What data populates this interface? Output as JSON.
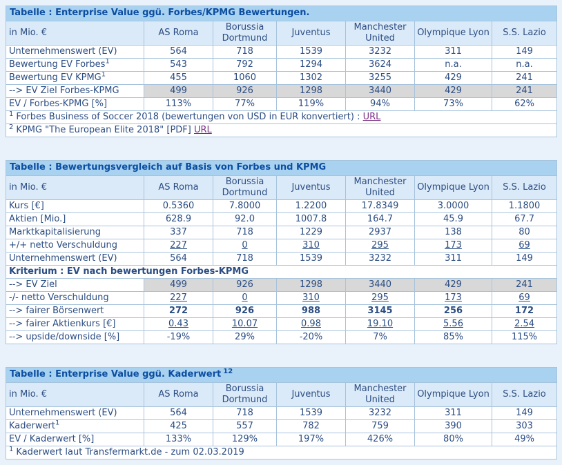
{
  "colors": {
    "page_bg": "#e9f2fb",
    "title_bg": "#a9d2f0",
    "title_text": "#0b4da1",
    "header_bg": "#dbeaf8",
    "body_text": "#2b4d83",
    "gray_bg": "#d8d8d8",
    "border": "#a6c3dc",
    "link": "#7b3086"
  },
  "clubs": [
    "AS Roma",
    "Borussia Dortmund",
    "Juventus",
    "Manchester United",
    "Olympique Lyon",
    "S.S. Lazio"
  ],
  "tables": [
    {
      "title": "Tabelle : Enterprise Value ggü. Forbes/KPMG Bewertungen.",
      "corner_label": "in Mio. €",
      "rows": [
        {
          "label": "Unternehmenswert (EV)",
          "values": [
            "564",
            "718",
            "1539",
            "3232",
            "311",
            "149"
          ]
        },
        {
          "label": "Bewertung EV Forbes",
          "label_sup": "1",
          "values": [
            "543",
            "792",
            "1294",
            "3624",
            "n.a.",
            "n.a."
          ]
        },
        {
          "label": "Bewertung EV KPMG",
          "label_sup": "1",
          "values": [
            "455",
            "1060",
            "1302",
            "3255",
            "429",
            "241"
          ]
        },
        {
          "label": "--> EV Ziel Forbes-KPMG",
          "highlight": "gray",
          "values": [
            "499",
            "926",
            "1298",
            "3440",
            "429",
            "241"
          ]
        },
        {
          "label": "EV / Forbes-KPMG [%]",
          "values": [
            "113%",
            "77%",
            "119%",
            "94%",
            "73%",
            "62%"
          ]
        }
      ],
      "footnotes": [
        {
          "sup": "1",
          "text": "Forbes Business of Soccer 2018 (bewertungen von USD in EUR konvertiert) : ",
          "link": "URL"
        },
        {
          "sup": "2",
          "text": "KPMG \"The European Elite 2018\" [PDF] ",
          "link": "URL"
        }
      ]
    },
    {
      "title": "Tabelle : Bewertungsvergleich auf Basis von Forbes und KPMG",
      "corner_label": "in Mio. €",
      "rows": [
        {
          "label": "Kurs [€]",
          "values": [
            "0.5360",
            "7.8000",
            "1.2200",
            "17.8349",
            "3.0000",
            "1.1800"
          ]
        },
        {
          "label": "Aktien [Mio.]",
          "values": [
            "628.9",
            "92.0",
            "1007.8",
            "164.7",
            "45.9",
            "67.7"
          ]
        },
        {
          "label": "Marktkapitalisierung",
          "values": [
            "337",
            "718",
            "1229",
            "2937",
            "138",
            "80"
          ]
        },
        {
          "label": "+/+ netto Verschuldung",
          "value_style": "underline",
          "values": [
            "227",
            "0",
            "310",
            "295",
            "173",
            "69"
          ]
        },
        {
          "label": "Unternehmenswert (EV)",
          "values": [
            "564",
            "718",
            "1539",
            "3232",
            "311",
            "149"
          ]
        },
        {
          "label": "Kriterium : EV nach bewertungen Forbes-KPMG",
          "section": true
        },
        {
          "label": "--> EV Ziel",
          "highlight": "gray",
          "values": [
            "499",
            "926",
            "1298",
            "3440",
            "429",
            "241"
          ]
        },
        {
          "label": "-/- netto Verschuldung",
          "value_style": "underline",
          "values": [
            "227",
            "0",
            "310",
            "295",
            "173",
            "69"
          ]
        },
        {
          "label": "--> fairer Börsenwert",
          "value_style": "bold",
          "values": [
            "272",
            "926",
            "988",
            "3145",
            "256",
            "172"
          ]
        },
        {
          "label": "--> fairer Aktienkurs [€]",
          "value_style": "underline",
          "values": [
            "0.43",
            "10.07",
            "0.98",
            "19.10",
            "5.56",
            "2.54"
          ]
        },
        {
          "label": "--> upside/downside [%]",
          "values": [
            "-19%",
            "29%",
            "-20%",
            "7%",
            "85%",
            "115%"
          ]
        }
      ],
      "footnotes": []
    },
    {
      "title": "Tabelle : Enterprise Value ggü. Kaderwert",
      "title_sup": "12",
      "corner_label": "in Mio. €",
      "rows": [
        {
          "label": "Unternehmenswert (EV)",
          "values": [
            "564",
            "718",
            "1539",
            "3232",
            "311",
            "149"
          ]
        },
        {
          "label": "Kaderwert",
          "label_sup": "1",
          "values": [
            "425",
            "557",
            "782",
            "759",
            "390",
            "303"
          ]
        },
        {
          "label": "EV / Kaderwert [%]",
          "values": [
            "133%",
            "129%",
            "197%",
            "426%",
            "80%",
            "49%"
          ]
        }
      ],
      "footnotes": [
        {
          "sup": "1",
          "text": "Kaderwert laut Transfermarkt.de - zum 02.03.2019",
          "link": ""
        }
      ]
    }
  ]
}
